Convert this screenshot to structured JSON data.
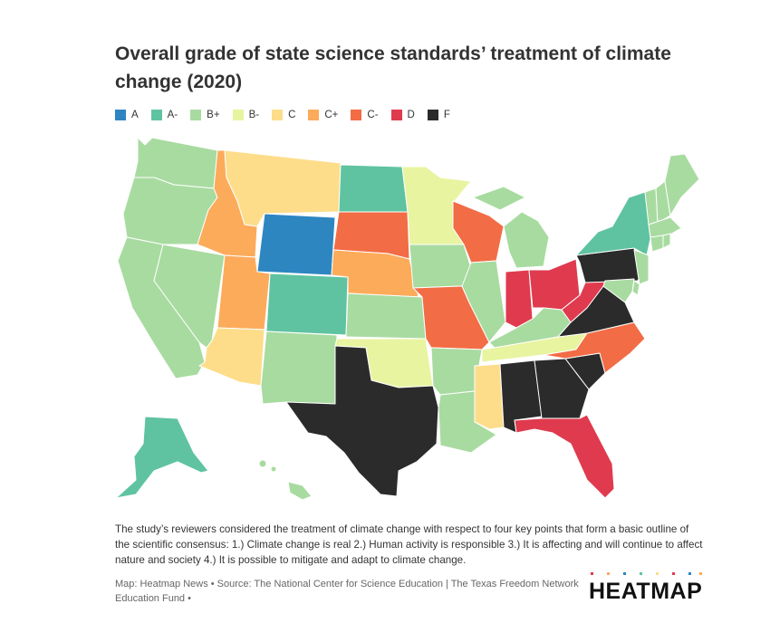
{
  "title": "Overall grade of state science standards’ treatment of climate change (2020)",
  "legend": [
    {
      "grade": "A",
      "color": "#2e86c1"
    },
    {
      "grade": "A-",
      "color": "#5fc3a1"
    },
    {
      "grade": "B+",
      "color": "#a8dba0"
    },
    {
      "grade": "B-",
      "color": "#e8f4a0"
    },
    {
      "grade": "C",
      "color": "#fddd8a"
    },
    {
      "grade": "C+",
      "color": "#fcab5b"
    },
    {
      "grade": "C-",
      "color": "#f26c45"
    },
    {
      "grade": "D",
      "color": "#e03a4e"
    },
    {
      "grade": "F",
      "color": "#2b2b2b"
    }
  ],
  "states": {
    "WA": "B+",
    "OR": "B+",
    "CA": "B+",
    "NV": "B+",
    "ID": "C+",
    "MT": "C",
    "WY": "A",
    "UT": "C+",
    "AZ": "C",
    "CO": "A-",
    "NM": "B+",
    "ND": "A-",
    "SD": "C-",
    "NE": "C+",
    "KS": "B+",
    "OK": "B-",
    "TX": "F",
    "MN": "B-",
    "IA": "B+",
    "MO": "C-",
    "AR": "B+",
    "LA": "B+",
    "WI": "C-",
    "IL": "B+",
    "MI": "B+",
    "IN": "D",
    "OH": "D",
    "KY": "B+",
    "TN": "B-",
    "MS": "C",
    "AL": "F",
    "GA": "F",
    "FL": "D",
    "SC": "F",
    "NC": "C-",
    "VA": "F",
    "WV": "D",
    "PA": "F",
    "NY": "A-",
    "VT": "B+",
    "NH": "B+",
    "ME": "B+",
    "MA": "B+",
    "RI": "B+",
    "CT": "B+",
    "NJ": "B+",
    "DE": "B+",
    "MD": "B+",
    "AK": "A-",
    "HI": "B+"
  },
  "description": "The study’s reviewers considered the treatment of climate change with respect to four key points that form a basic outline of the scientific consensus: 1.) Climate change is real 2.) Human activity is responsible 3.) It is affecting and will continue to affect nature and society 4.) It is possible to mitigate and adapt to climate change.",
  "footer": "Map: Heatmap News • Source: The National Center for Science Education | The Texas Freedom Network Education Fund •",
  "logo": {
    "text": "HEATMAP",
    "dot_colors": [
      "#e03a4e",
      "#fcab5b",
      "#2e86c1",
      "#5fc3a1",
      "#fddd8a"
    ]
  }
}
